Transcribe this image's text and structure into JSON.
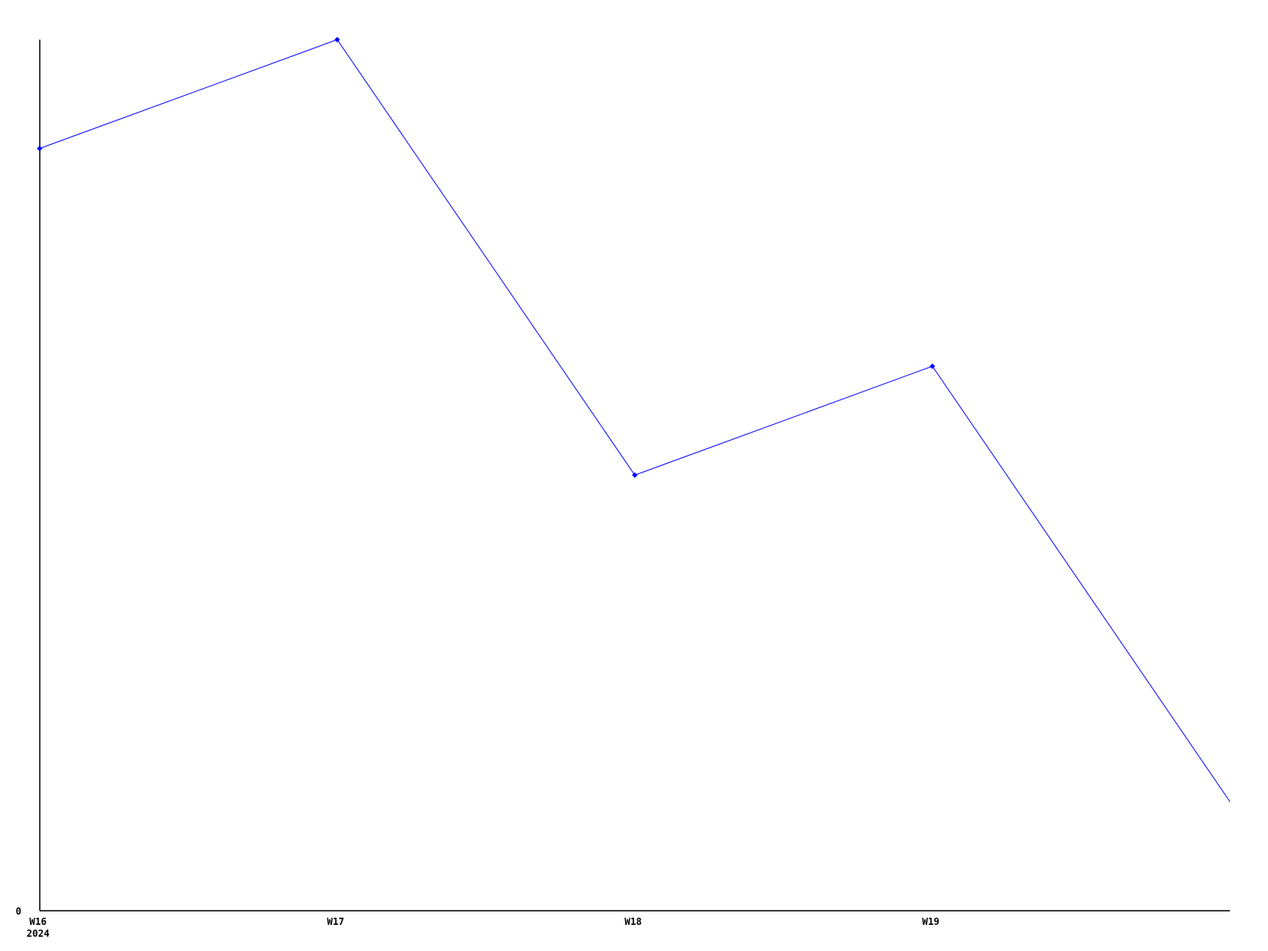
{
  "chart_data": {
    "type": "line",
    "title": "",
    "xlabel": "",
    "ylabel": "",
    "x_categories": [
      "W16",
      "W17",
      "W18",
      "W19",
      ""
    ],
    "x_ticks": [
      {
        "index": 0,
        "label": "W16"
      },
      {
        "index": 1,
        "label": "W17"
      },
      {
        "index": 2,
        "label": "W18"
      },
      {
        "index": 3,
        "label": "W19"
      }
    ],
    "x_axis_secondary_label": "2024",
    "y_ticks": [
      {
        "value": 0,
        "label": "0"
      }
    ],
    "series": [
      {
        "name": "",
        "values": [
          7,
          8,
          4,
          5,
          1
        ]
      }
    ],
    "values": [
      7,
      8,
      4,
      5,
      1
    ],
    "ylim": [
      0,
      8
    ],
    "grid": false,
    "legend": null,
    "line_color": "#0000ff",
    "axis_color": "#000000",
    "text_color": "#000000",
    "background_color": "#ffffff",
    "marker": "diamond",
    "marker_point_indices": [
      0,
      1,
      2,
      3
    ]
  }
}
